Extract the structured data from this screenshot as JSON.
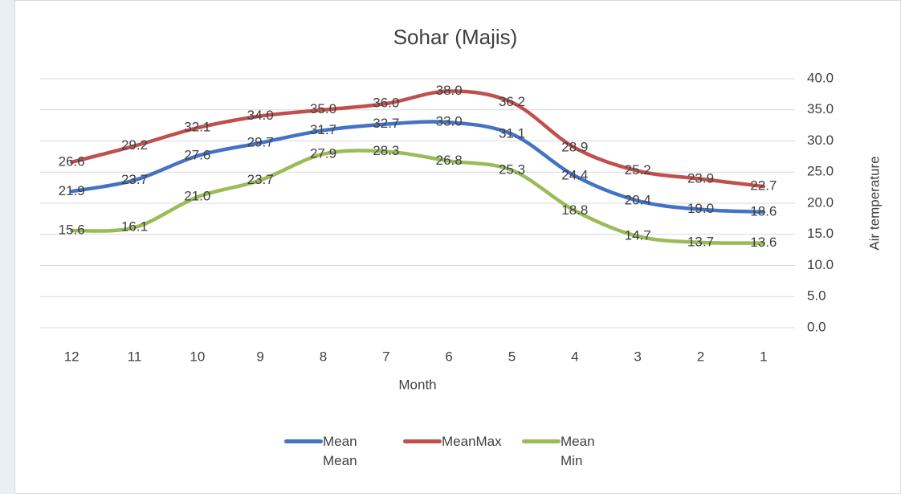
{
  "chart_data": {
    "type": "line",
    "title": "Sohar (Majis)",
    "x_label": "Month",
    "y_label": "Air temperature",
    "categories": [
      "12",
      "11",
      "10",
      "9",
      "8",
      "7",
      "6",
      "5",
      "4",
      "3",
      "2",
      "1"
    ],
    "series": [
      {
        "name": "Mean Mean",
        "color": "#4472c4",
        "values": [
          21.9,
          23.7,
          27.6,
          29.7,
          31.7,
          32.7,
          33.0,
          31.1,
          24.4,
          20.4,
          19.0,
          18.6
        ],
        "value_labels": [
          "21.9",
          "23.7",
          "27.6",
          "29.7",
          "31.7",
          "32.7",
          "33.0",
          "31.1",
          "24.4",
          "20.4",
          "19.0",
          "18.6"
        ]
      },
      {
        "name": "MeanMax",
        "color": "#c0504d",
        "values": [
          26.6,
          29.2,
          32.1,
          34.0,
          35.0,
          36.0,
          38.0,
          36.2,
          28.9,
          25.2,
          23.9,
          22.7
        ],
        "value_labels": [
          "26.6",
          "29.2",
          "32.1",
          "34.0",
          "35.0",
          "36.0",
          "38.0",
          "36.2",
          "28.9",
          "25.2",
          "23.9",
          "22.7"
        ]
      },
      {
        "name": "Mean Min",
        "color": "#9bbb59",
        "values": [
          15.6,
          16.1,
          21.0,
          23.7,
          27.9,
          28.3,
          26.8,
          25.3,
          18.8,
          14.7,
          13.7,
          13.6
        ],
        "value_labels": [
          "15.6",
          "16.1",
          "21.0",
          "23.7",
          "27.9",
          "28.3",
          "26.8",
          "25.3",
          "18.8",
          "14.7",
          "13.7",
          "13.6"
        ]
      }
    ],
    "ylim": [
      0,
      40
    ],
    "yticks": [
      {
        "value": 0,
        "label": "0.0"
      },
      {
        "value": 5,
        "label": "5.0"
      },
      {
        "value": 10,
        "label": "10.0"
      },
      {
        "value": 15,
        "label": "15.0"
      },
      {
        "value": 20,
        "label": "20.0"
      },
      {
        "value": 25,
        "label": "25.0"
      },
      {
        "value": 30,
        "label": "30.0"
      },
      {
        "value": 35,
        "label": "35.0"
      },
      {
        "value": 40,
        "label": "40.0"
      }
    ],
    "grid": true,
    "legend": "bottom"
  }
}
